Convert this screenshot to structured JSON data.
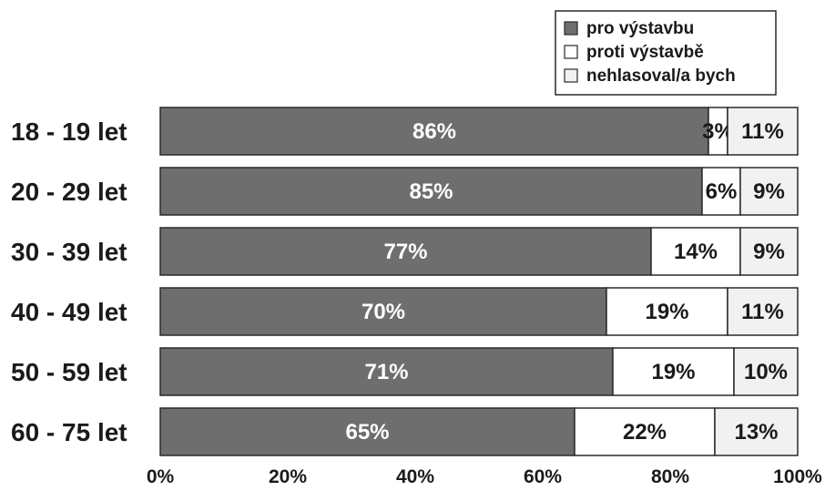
{
  "chart_data": {
    "type": "bar",
    "orientation": "horizontal",
    "stacked": true,
    "categories": [
      "18 - 19 let",
      "20 - 29 let",
      "30 - 39 let",
      "40 - 49 let",
      "50 - 59 let",
      "60 - 75 let"
    ],
    "series": [
      {
        "name": "pro výstavbu",
        "values": [
          86,
          85,
          77,
          70,
          71,
          65
        ],
        "labels": [
          "86%",
          "85%",
          "77%",
          "70%",
          "71%",
          "65%"
        ],
        "color": "#6e6e6e"
      },
      {
        "name": "proti výstavbě",
        "values": [
          3,
          6,
          14,
          19,
          19,
          22
        ],
        "labels": [
          "3%",
          "6%",
          "14%",
          "19%",
          "19%",
          "22%"
        ],
        "color": "#ffffff"
      },
      {
        "name": "nehlasoval/a bych",
        "values": [
          11,
          9,
          9,
          11,
          10,
          13
        ],
        "labels": [
          "11%",
          "9%",
          "9%",
          "11%",
          "10%",
          "13%"
        ],
        "color": "#f1f1f1"
      }
    ],
    "x_ticks": [
      "0%",
      "20%",
      "40%",
      "60%",
      "80%",
      "100%"
    ],
    "xlim": [
      0,
      100
    ],
    "xlabel": "",
    "ylabel": "",
    "title": "",
    "grid": false,
    "legend_position": "top-right"
  }
}
